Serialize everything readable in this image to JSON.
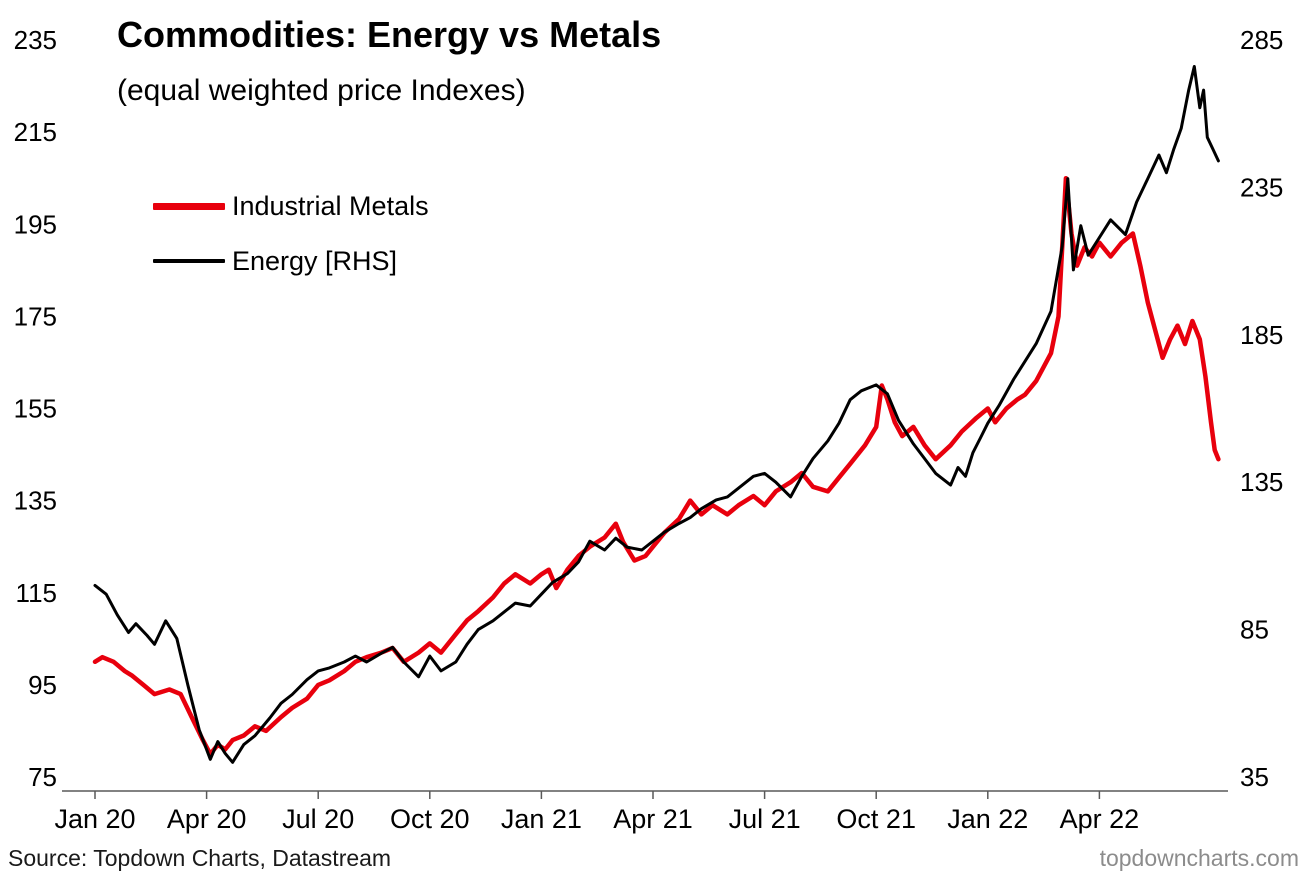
{
  "header": {
    "title": "Commodities: Energy vs Metals",
    "subtitle": "(equal weighted price Indexes)"
  },
  "legend": {
    "items": [
      {
        "label": "Industrial Metals"
      },
      {
        "label": "Energy [RHS]"
      }
    ]
  },
  "footer": {
    "source": "Source: Topdown Charts, Datastream",
    "watermark": "topdowncharts.com"
  },
  "chart_data": {
    "type": "line",
    "title": "Commodities: Energy vs Metals",
    "subtitle": "(equal weighted price Indexes)",
    "x_unit": "months since Jan 2020",
    "x_tick_labels": [
      "Jan 20",
      "Apr 20",
      "Jul 20",
      "Oct 20",
      "Jan 21",
      "Apr 21",
      "Jul 21",
      "Oct 21",
      "Jan 22",
      "Apr 22"
    ],
    "x_tick_positions": [
      0,
      3,
      6,
      9,
      12,
      15,
      18,
      21,
      24,
      27
    ],
    "grid": false,
    "legend_position": "upper-left",
    "left_axis": {
      "ticks": [
        75,
        95,
        115,
        135,
        155,
        175,
        195,
        215,
        235
      ],
      "lim": [
        75,
        235
      ]
    },
    "right_axis": {
      "ticks": [
        35,
        85,
        135,
        185,
        235,
        285
      ],
      "lim": [
        35,
        285
      ]
    },
    "series": [
      {
        "name": "Industrial Metals",
        "axis": "left",
        "color": "#e8000d",
        "width": 4.5,
        "points": [
          [
            0,
            100
          ],
          [
            0.2,
            101
          ],
          [
            0.5,
            100
          ],
          [
            0.8,
            98
          ],
          [
            1,
            97
          ],
          [
            1.3,
            95
          ],
          [
            1.6,
            93
          ],
          [
            2,
            94
          ],
          [
            2.3,
            93
          ],
          [
            2.6,
            88
          ],
          [
            2.9,
            83
          ],
          [
            3.1,
            80
          ],
          [
            3.3,
            82
          ],
          [
            3.5,
            81
          ],
          [
            3.7,
            83
          ],
          [
            4,
            84
          ],
          [
            4.3,
            86
          ],
          [
            4.6,
            85
          ],
          [
            5,
            88
          ],
          [
            5.3,
            90
          ],
          [
            5.7,
            92
          ],
          [
            6,
            95
          ],
          [
            6.3,
            96
          ],
          [
            6.7,
            98
          ],
          [
            7,
            100
          ],
          [
            7.3,
            101
          ],
          [
            7.7,
            102
          ],
          [
            8,
            103
          ],
          [
            8.3,
            100
          ],
          [
            8.7,
            102
          ],
          [
            9,
            104
          ],
          [
            9.3,
            102
          ],
          [
            9.7,
            106
          ],
          [
            10,
            109
          ],
          [
            10.3,
            111
          ],
          [
            10.7,
            114
          ],
          [
            11,
            117
          ],
          [
            11.3,
            119
          ],
          [
            11.7,
            117
          ],
          [
            12,
            119
          ],
          [
            12.2,
            120
          ],
          [
            12.4,
            116
          ],
          [
            12.7,
            120
          ],
          [
            13,
            123
          ],
          [
            13.3,
            125
          ],
          [
            13.7,
            127
          ],
          [
            14,
            130
          ],
          [
            14.2,
            126
          ],
          [
            14.5,
            122
          ],
          [
            14.8,
            123
          ],
          [
            15,
            125
          ],
          [
            15.3,
            128
          ],
          [
            15.7,
            131
          ],
          [
            16,
            135
          ],
          [
            16.3,
            132
          ],
          [
            16.6,
            134
          ],
          [
            17,
            132
          ],
          [
            17.3,
            134
          ],
          [
            17.7,
            136
          ],
          [
            18,
            134
          ],
          [
            18.3,
            137
          ],
          [
            18.7,
            139
          ],
          [
            19,
            141
          ],
          [
            19.3,
            138
          ],
          [
            19.7,
            137
          ],
          [
            20,
            140
          ],
          [
            20.3,
            143
          ],
          [
            20.7,
            147
          ],
          [
            21,
            151
          ],
          [
            21.15,
            160
          ],
          [
            21.3,
            157
          ],
          [
            21.5,
            152
          ],
          [
            21.7,
            149
          ],
          [
            22,
            151
          ],
          [
            22.3,
            147
          ],
          [
            22.6,
            144
          ],
          [
            23,
            147
          ],
          [
            23.3,
            150
          ],
          [
            23.7,
            153
          ],
          [
            24,
            155
          ],
          [
            24.2,
            152
          ],
          [
            24.5,
            155
          ],
          [
            24.8,
            157
          ],
          [
            25,
            158
          ],
          [
            25.3,
            161
          ],
          [
            25.7,
            167
          ],
          [
            25.9,
            175
          ],
          [
            26.1,
            205
          ],
          [
            26.25,
            193
          ],
          [
            26.4,
            186
          ],
          [
            26.6,
            190
          ],
          [
            26.8,
            188
          ],
          [
            27,
            191
          ],
          [
            27.3,
            188
          ],
          [
            27.6,
            191
          ],
          [
            27.9,
            193
          ],
          [
            28.1,
            186
          ],
          [
            28.3,
            178
          ],
          [
            28.5,
            172
          ],
          [
            28.7,
            166
          ],
          [
            28.9,
            170
          ],
          [
            29.1,
            173
          ],
          [
            29.3,
            169
          ],
          [
            29.5,
            174
          ],
          [
            29.7,
            170
          ],
          [
            29.85,
            162
          ],
          [
            30,
            152
          ],
          [
            30.1,
            146
          ],
          [
            30.2,
            144
          ]
        ]
      },
      {
        "name": "Energy [RHS]",
        "axis": "right",
        "color": "#000000",
        "width": 3,
        "points": [
          [
            0,
            100
          ],
          [
            0.3,
            97
          ],
          [
            0.6,
            90
          ],
          [
            0.9,
            84
          ],
          [
            1.1,
            87
          ],
          [
            1.4,
            83
          ],
          [
            1.6,
            80
          ],
          [
            1.9,
            88
          ],
          [
            2.2,
            82
          ],
          [
            2.5,
            66
          ],
          [
            2.8,
            51
          ],
          [
            3.1,
            41
          ],
          [
            3.3,
            47
          ],
          [
            3.5,
            43
          ],
          [
            3.7,
            40
          ],
          [
            4,
            46
          ],
          [
            4.3,
            49
          ],
          [
            4.7,
            55
          ],
          [
            5,
            60
          ],
          [
            5.3,
            63
          ],
          [
            5.7,
            68
          ],
          [
            6,
            71
          ],
          [
            6.3,
            72
          ],
          [
            6.7,
            74
          ],
          [
            7,
            76
          ],
          [
            7.3,
            74
          ],
          [
            7.7,
            77
          ],
          [
            8,
            79
          ],
          [
            8.3,
            74
          ],
          [
            8.7,
            69
          ],
          [
            9,
            76
          ],
          [
            9.3,
            71
          ],
          [
            9.7,
            74
          ],
          [
            10,
            80
          ],
          [
            10.3,
            85
          ],
          [
            10.7,
            88
          ],
          [
            11,
            91
          ],
          [
            11.3,
            94
          ],
          [
            11.7,
            93
          ],
          [
            12,
            97
          ],
          [
            12.3,
            101
          ],
          [
            12.7,
            104
          ],
          [
            13,
            108
          ],
          [
            13.3,
            115
          ],
          [
            13.7,
            112
          ],
          [
            14,
            116
          ],
          [
            14.3,
            113
          ],
          [
            14.7,
            112
          ],
          [
            15,
            115
          ],
          [
            15.3,
            118
          ],
          [
            15.7,
            121
          ],
          [
            16,
            123
          ],
          [
            16.3,
            126
          ],
          [
            16.7,
            129
          ],
          [
            17,
            130
          ],
          [
            17.3,
            133
          ],
          [
            17.7,
            137
          ],
          [
            18,
            138
          ],
          [
            18.3,
            135
          ],
          [
            18.7,
            130
          ],
          [
            19,
            137
          ],
          [
            19.3,
            143
          ],
          [
            19.7,
            149
          ],
          [
            20,
            155
          ],
          [
            20.3,
            163
          ],
          [
            20.6,
            166
          ],
          [
            21,
            168
          ],
          [
            21.3,
            165
          ],
          [
            21.6,
            156
          ],
          [
            22,
            148
          ],
          [
            22.3,
            143
          ],
          [
            22.6,
            138
          ],
          [
            23,
            134
          ],
          [
            23.2,
            140
          ],
          [
            23.4,
            137
          ],
          [
            23.6,
            145
          ],
          [
            23.8,
            150
          ],
          [
            24,
            155
          ],
          [
            24.3,
            161
          ],
          [
            24.7,
            170
          ],
          [
            25,
            176
          ],
          [
            25.3,
            182
          ],
          [
            25.7,
            193
          ],
          [
            26,
            215
          ],
          [
            26.15,
            238
          ],
          [
            26.3,
            207
          ],
          [
            26.5,
            222
          ],
          [
            26.7,
            212
          ],
          [
            27,
            218
          ],
          [
            27.3,
            224
          ],
          [
            27.7,
            219
          ],
          [
            28,
            230
          ],
          [
            28.3,
            238
          ],
          [
            28.6,
            246
          ],
          [
            28.8,
            240
          ],
          [
            29,
            248
          ],
          [
            29.2,
            255
          ],
          [
            29.4,
            268
          ],
          [
            29.55,
            276
          ],
          [
            29.7,
            262
          ],
          [
            29.8,
            268
          ],
          [
            29.9,
            252
          ],
          [
            30.05,
            248
          ],
          [
            30.2,
            244
          ]
        ]
      }
    ]
  }
}
